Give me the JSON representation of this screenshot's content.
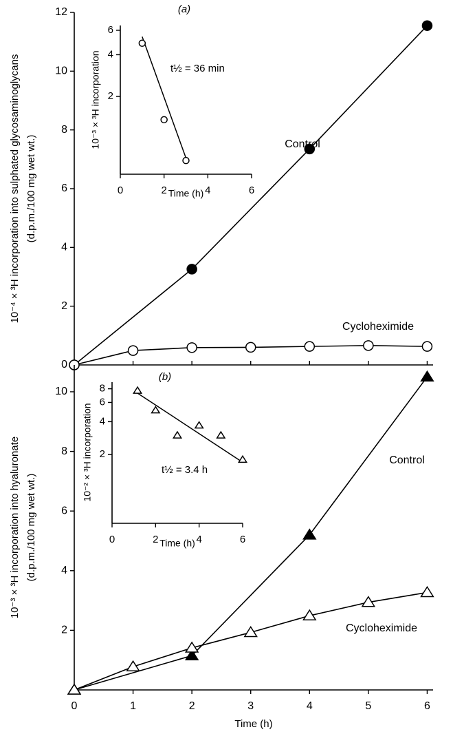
{
  "chart_data": [
    {
      "type": "line",
      "title": "(a)",
      "ylabel": [
        "10⁻⁴ × ³H incorporation into sulphated glycosaminoglycans",
        "(d.p.m./100 mg wet wt.)"
      ],
      "xlim": [
        0,
        6.1
      ],
      "ylim": [
        0,
        12
      ],
      "yticks": [
        0,
        2,
        4,
        6,
        8,
        10,
        12
      ],
      "series": [
        {
          "name": "Control",
          "marker": "filled-circle",
          "color": "#000000",
          "x": [
            0,
            2,
            4,
            6
          ],
          "values": [
            0,
            3.26,
            7.35,
            11.55
          ]
        },
        {
          "name": "Cycloheximide",
          "marker": "open-circle",
          "color": "#000000",
          "x": [
            0,
            1,
            2,
            3,
            4,
            5,
            6
          ],
          "values": [
            0,
            0.49,
            0.59,
            0.6,
            0.63,
            0.66,
            0.63
          ]
        }
      ]
    },
    {
      "type": "line",
      "annotation": "t½ = 36 min",
      "xlabel": "Time (h)",
      "ylabel": [
        "10⁻³ × ³H incorporation"
      ],
      "yscale": "log",
      "xlim": [
        0,
        6
      ],
      "ylim": [
        0.55,
        6.5
      ],
      "xticks": [
        0,
        2,
        4,
        6
      ],
      "yticks": [
        2,
        4,
        6
      ],
      "series": [
        {
          "marker": "open-circle",
          "color": "#000000",
          "x": [
            1,
            2,
            3
          ],
          "values": [
            4.84,
            1.36,
            0.69
          ]
        }
      ],
      "fit": {
        "x": [
          1,
          3
        ],
        "values": [
          5.4,
          0.72
        ]
      }
    },
    {
      "type": "line",
      "title": "(b)",
      "xlabel": "Time (h)",
      "ylabel": [
        "10⁻³ × ³H incorporation into hyaluronate",
        "(d.p.m./100 mg wet wt.)"
      ],
      "xlim": [
        0,
        6.1
      ],
      "ylim": [
        0,
        10.9
      ],
      "xticks": [
        0,
        1,
        2,
        3,
        4,
        5,
        6
      ],
      "yticks": [
        2,
        4,
        6,
        8,
        10
      ],
      "series": [
        {
          "name": "Control",
          "marker": "filled-triangle",
          "color": "#000000",
          "x": [
            0,
            2,
            4,
            6
          ],
          "values": [
            0,
            1.15,
            5.2,
            10.5
          ]
        },
        {
          "name": "Cycloheximide",
          "marker": "open-triangle",
          "color": "#000000",
          "x": [
            0,
            1,
            2,
            3,
            4,
            5,
            6
          ],
          "values": [
            0,
            0.78,
            1.41,
            1.93,
            2.49,
            2.94,
            3.27
          ]
        }
      ]
    },
    {
      "type": "line",
      "annotation": "t½ = 3.4 h",
      "xlabel": "Time (h)",
      "ylabel": [
        "10⁻² × ³H incorporation"
      ],
      "yscale": "log",
      "xlim": [
        0,
        6
      ],
      "ylim": [
        0.47,
        9.2
      ],
      "xticks": [
        0,
        2,
        4,
        6
      ],
      "yticks": [
        2,
        4,
        6,
        8
      ],
      "series": [
        {
          "marker": "open-triangle",
          "color": "#000000",
          "x": [
            1.17,
            2,
            3,
            4,
            5,
            6
          ],
          "values": [
            7.7,
            5.09,
            3.0,
            3.7,
            3.0,
            1.8
          ]
        }
      ],
      "fit": {
        "x": [
          1.17,
          6
        ],
        "values": [
          7.3,
          1.7
        ]
      }
    }
  ]
}
